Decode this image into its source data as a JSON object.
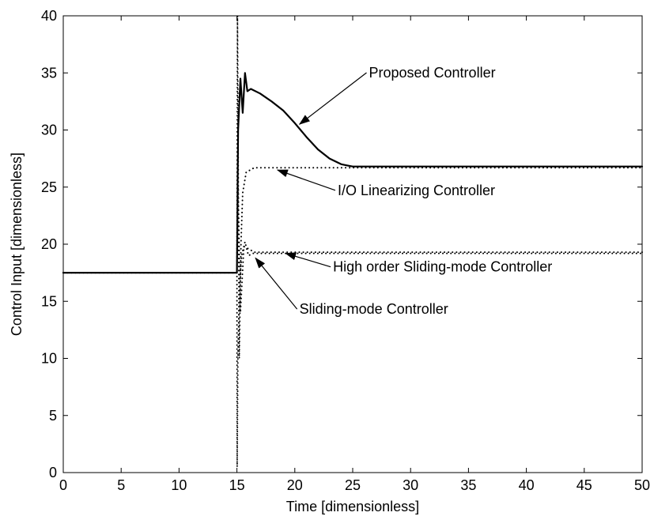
{
  "chart_data": {
    "type": "line",
    "title": "",
    "xlabel": "Time [dimensionless]",
    "ylabel": "Control Input [dimensionless]",
    "xlim": [
      0,
      50
    ],
    "ylim": [
      0,
      40
    ],
    "xticks": [
      0,
      5,
      10,
      15,
      20,
      25,
      30,
      35,
      40,
      45,
      50
    ],
    "yticks": [
      0,
      5,
      10,
      15,
      20,
      25,
      30,
      35,
      40
    ],
    "grid": false,
    "legend": "none",
    "series": [
      {
        "name": "Proposed Controller",
        "style": "solid",
        "x": [
          0,
          15,
          15.1,
          15.3,
          15.5,
          15.7,
          15.9,
          16.2,
          17,
          18,
          19,
          20,
          21,
          22,
          23,
          24,
          24.5,
          25,
          26,
          30,
          35,
          40,
          45,
          50
        ],
        "y": [
          17.5,
          17.5,
          30,
          34.5,
          31.5,
          35,
          33.4,
          33.6,
          33.2,
          32.5,
          31.7,
          30.6,
          29.4,
          28.3,
          27.5,
          27.0,
          26.9,
          26.8,
          26.8,
          26.8,
          26.8,
          26.8,
          26.8,
          26.8
        ]
      },
      {
        "name": "I/O Linearizing Controller",
        "style": "dotted",
        "x": [
          0,
          15,
          15.05,
          15.2,
          15.35,
          15.5,
          15.8,
          16.5,
          18,
          20,
          25,
          30,
          35,
          40,
          45,
          50
        ],
        "y": [
          17.5,
          17.5,
          40,
          10,
          20,
          24.5,
          26.3,
          26.7,
          26.7,
          26.7,
          26.7,
          26.7,
          26.7,
          26.7,
          26.7,
          26.7
        ]
      },
      {
        "name": "High order Sliding-mode Controller",
        "style": "dotted",
        "x": [
          0,
          15,
          15.1,
          15.3,
          15.6,
          16.0,
          16.5,
          17,
          20,
          25,
          30,
          35,
          40,
          45,
          50
        ],
        "y": [
          17.5,
          17.5,
          25,
          14,
          19.8,
          19.6,
          19.3,
          19.3,
          19.3,
          19.3,
          19.3,
          19.3,
          19.3,
          19.3,
          19.3
        ]
      },
      {
        "name": "Sliding-mode Controller",
        "style": "dotted",
        "x": [
          0,
          15,
          15.02,
          15.08,
          15.2,
          15.4,
          15.7,
          16.0,
          16.4,
          17,
          20,
          25,
          30,
          35,
          40,
          45,
          50
        ],
        "y": [
          17.5,
          17.5,
          0.5,
          10,
          15.5,
          19.0,
          20.2,
          19.0,
          19.2,
          19.2,
          19.2,
          19.2,
          19.2,
          19.2,
          19.2,
          19.2,
          19.2
        ]
      }
    ],
    "annotations": [
      {
        "text": "Proposed Controller",
        "point_x": 20.4,
        "point_y": 30.5,
        "label_x": 26.4,
        "label_y": 34.6
      },
      {
        "text": "I/O Linearizing Controller",
        "point_x": 18.5,
        "point_y": 26.5,
        "label_x": 23.7,
        "label_y": 24.3
      },
      {
        "text": "High order Sliding-mode Controller",
        "point_x": 19.2,
        "point_y": 19.2,
        "label_x": 23.3,
        "label_y": 17.6
      },
      {
        "text": "Sliding-mode Controller",
        "point_x": 16.6,
        "point_y": 18.8,
        "label_x": 20.4,
        "label_y": 13.9
      }
    ]
  }
}
